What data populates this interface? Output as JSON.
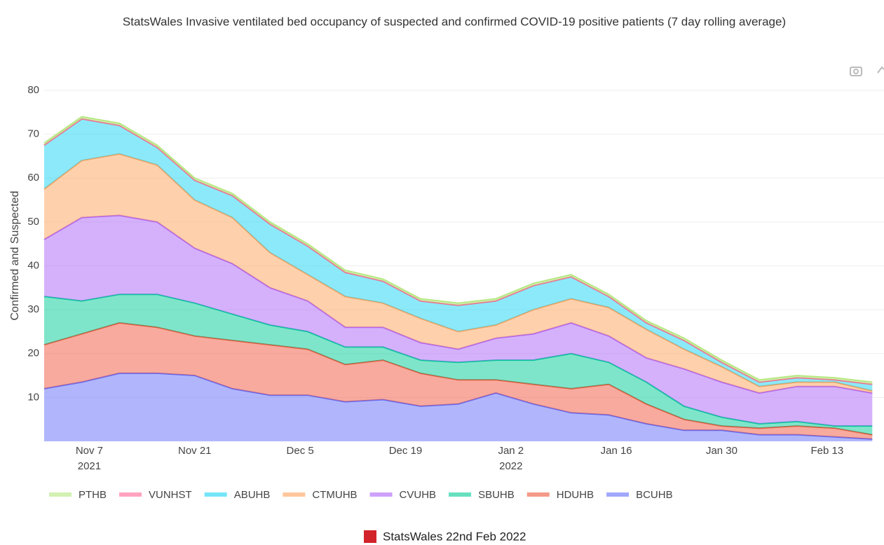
{
  "chart_data": {
    "type": "stacked_area",
    "title": "StatsWales Invasive ventilated bed occupancy of suspected and confirmed COVID-19 positive patients (7 day rolling average)",
    "y_label": "Confirmed and Suspected",
    "footer": "StatsWales 22nd Feb 2022",
    "x": [
      "2021-11-01",
      "2021-11-06",
      "2021-11-11",
      "2021-11-16",
      "2021-11-21",
      "2021-11-26",
      "2021-12-01",
      "2021-12-06",
      "2021-12-11",
      "2021-12-16",
      "2021-12-21",
      "2021-12-26",
      "2021-12-31",
      "2022-01-05",
      "2022-01-10",
      "2022-01-15",
      "2022-01-20",
      "2022-01-25",
      "2022-01-30",
      "2022-02-04",
      "2022-02-09",
      "2022-02-14",
      "2022-02-19"
    ],
    "xlim": [
      "2021-11-01",
      "2022-02-20"
    ],
    "xticks": [
      {
        "value": "2021-11-07",
        "label": "Nov 7"
      },
      {
        "value": "2021-11-21",
        "label": "Nov 21"
      },
      {
        "value": "2021-12-05",
        "label": "Dec 5"
      },
      {
        "value": "2021-12-19",
        "label": "Dec 19"
      },
      {
        "value": "2022-01-02",
        "label": "Jan 2"
      },
      {
        "value": "2022-01-16",
        "label": "Jan 16"
      },
      {
        "value": "2022-01-30",
        "label": "Jan 30"
      },
      {
        "value": "2022-02-13",
        "label": "Feb 13"
      }
    ],
    "year_labels": [
      {
        "value": "2021-11-07",
        "label": "2021"
      },
      {
        "value": "2022-01-02",
        "label": "2022"
      }
    ],
    "ylim": [
      0,
      80
    ],
    "yticks": [
      10,
      20,
      30,
      40,
      50,
      60,
      70,
      80
    ],
    "grid": true,
    "series": [
      {
        "name": "PTHB",
        "color": "#b6e880",
        "values": [
          0.5,
          0.5,
          0.5,
          0.5,
          0.5,
          0.5,
          0.5,
          0.5,
          0.5,
          0.5,
          0.5,
          0.5,
          0.5,
          0.5,
          0.5,
          0.5,
          0.5,
          0.5,
          0.5,
          0.5,
          0.5,
          0.5,
          0.5
        ]
      },
      {
        "name": "VUNHST",
        "color": "#ff6692",
        "values": [
          0,
          0,
          0,
          0,
          0,
          0,
          0,
          0,
          0,
          0,
          0,
          0,
          0,
          0,
          0,
          0,
          0,
          0,
          0,
          0,
          0,
          0,
          0
        ]
      },
      {
        "name": "ABUHB",
        "color": "#19d3f3",
        "values": [
          10,
          9.5,
          6.5,
          4,
          4.5,
          5,
          6.5,
          6.5,
          5.5,
          5,
          4,
          6,
          5.5,
          5.5,
          5,
          2.5,
          1.5,
          2,
          1,
          1,
          1,
          0.5,
          1.5
        ]
      },
      {
        "name": "CTMUHB",
        "color": "#ffa15a",
        "values": [
          11.5,
          13,
          14,
          13,
          11,
          10.5,
          8,
          6,
          7,
          5.5,
          5.5,
          4,
          3,
          5.5,
          5.5,
          6.5,
          6.5,
          4.5,
          3.5,
          1.5,
          1,
          1,
          0.5
        ]
      },
      {
        "name": "CVUHB",
        "color": "#ab63fa",
        "values": [
          13,
          19,
          18,
          16.5,
          12.5,
          11.5,
          8.5,
          7,
          4.5,
          4.5,
          4,
          3,
          5,
          6,
          7,
          6,
          5.5,
          8.5,
          8,
          7,
          8,
          9,
          7.5
        ]
      },
      {
        "name": "SBUHB",
        "color": "#00cc96",
        "values": [
          11,
          7.5,
          6.5,
          7.5,
          7.5,
          6,
          4.5,
          4,
          4,
          3,
          3,
          4,
          4.5,
          5.5,
          8,
          5,
          5,
          3,
          2,
          1,
          1,
          0.5,
          2
        ]
      },
      {
        "name": "HDUHB",
        "color": "#ef553b",
        "values": [
          10,
          11,
          11.5,
          10.5,
          9,
          11,
          11.5,
          10.5,
          8.5,
          9,
          7.5,
          5.5,
          3,
          4.5,
          5.5,
          7,
          4.5,
          2.5,
          1,
          1.5,
          2,
          2,
          1
        ]
      },
      {
        "name": "BCUHB",
        "color": "#636efa",
        "values": [
          12,
          13.5,
          15.5,
          15.5,
          15,
          12,
          10.5,
          10.5,
          9,
          9.5,
          8,
          8.5,
          11,
          8.5,
          6.5,
          6,
          4,
          2.5,
          2.5,
          1.5,
          1.5,
          1,
          0.5
        ]
      }
    ]
  }
}
